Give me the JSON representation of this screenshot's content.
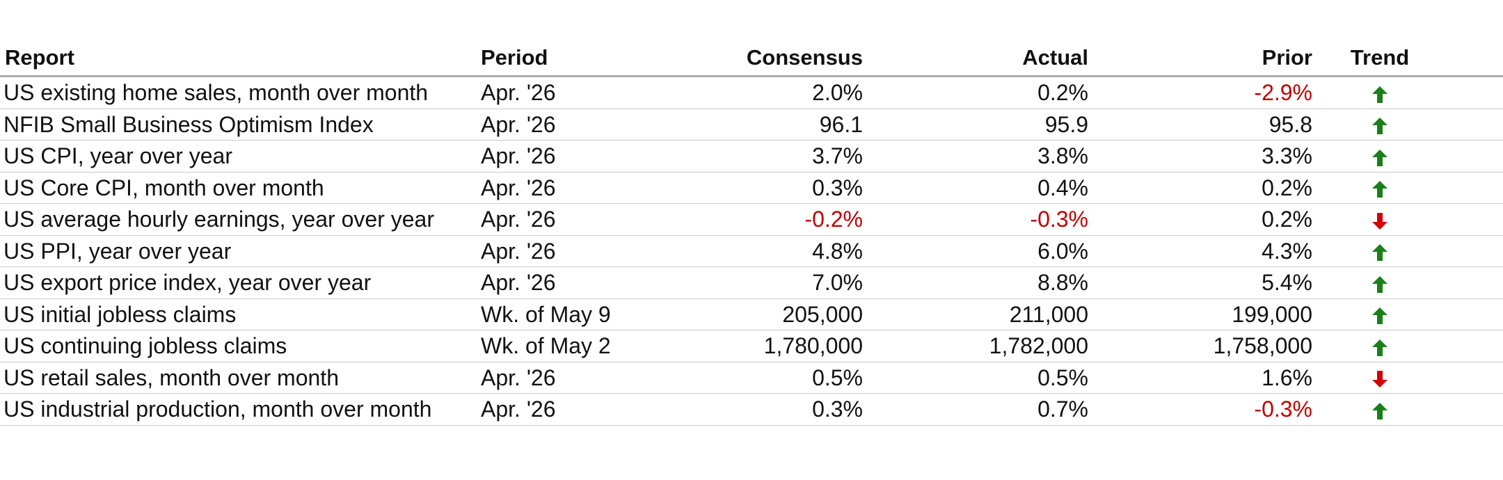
{
  "columns": {
    "report": "Report",
    "period": "Period",
    "consensus": "Consensus",
    "actual": "Actual",
    "prior": "Prior",
    "trend": "Trend"
  },
  "colors": {
    "negative": "#c00000",
    "up": "#1a7f1a",
    "down": "#d40000"
  },
  "rows": [
    {
      "report": "US existing home sales, month over month",
      "period": "Apr. '26",
      "consensus": "2.0%",
      "actual": "0.2%",
      "prior": "-2.9%",
      "trend": "up-arrow-icon"
    },
    {
      "report": "NFIB Small Business Optimism Index",
      "period": "Apr. '26",
      "consensus": "96.1",
      "actual": "95.9",
      "prior": "95.8",
      "trend": "up-arrow-icon"
    },
    {
      "report": "US CPI, year over year",
      "period": "Apr. '26",
      "consensus": "3.7%",
      "actual": "3.8%",
      "prior": "3.3%",
      "trend": "up-arrow-icon"
    },
    {
      "report": "US Core CPI, month over month",
      "period": "Apr. '26",
      "consensus": "0.3%",
      "actual": "0.4%",
      "prior": "0.2%",
      "trend": "up-arrow-icon"
    },
    {
      "report": "US average hourly earnings, year over year",
      "period": "Apr. '26",
      "consensus": "-0.2%",
      "actual": "-0.3%",
      "prior": "0.2%",
      "trend": "down-arrow-icon"
    },
    {
      "report": "US PPI, year over year",
      "period": "Apr. '26",
      "consensus": "4.8%",
      "actual": "6.0%",
      "prior": "4.3%",
      "trend": "up-arrow-icon"
    },
    {
      "report": "US export price index, year over year",
      "period": "Apr. '26",
      "consensus": "7.0%",
      "actual": "8.8%",
      "prior": "5.4%",
      "trend": "up-arrow-icon"
    },
    {
      "report": "US initial jobless claims",
      "period": "Wk. of May 9",
      "consensus": "205,000",
      "actual": "211,000",
      "prior": "199,000",
      "trend": "up-arrow-icon"
    },
    {
      "report": "US continuing jobless claims",
      "period": "Wk. of May 2",
      "consensus": "1,780,000",
      "actual": "1,782,000",
      "prior": "1,758,000",
      "trend": "up-arrow-icon"
    },
    {
      "report": "US retail sales, month over month",
      "period": "Apr. '26",
      "consensus": "0.5%",
      "actual": "0.5%",
      "prior": "1.6%",
      "trend": "down-arrow-icon"
    },
    {
      "report": "US industrial production, month over month",
      "period": "Apr. '26",
      "consensus": "0.3%",
      "actual": "0.7%",
      "prior": "-0.3%",
      "trend": "up-arrow-icon"
    }
  ]
}
